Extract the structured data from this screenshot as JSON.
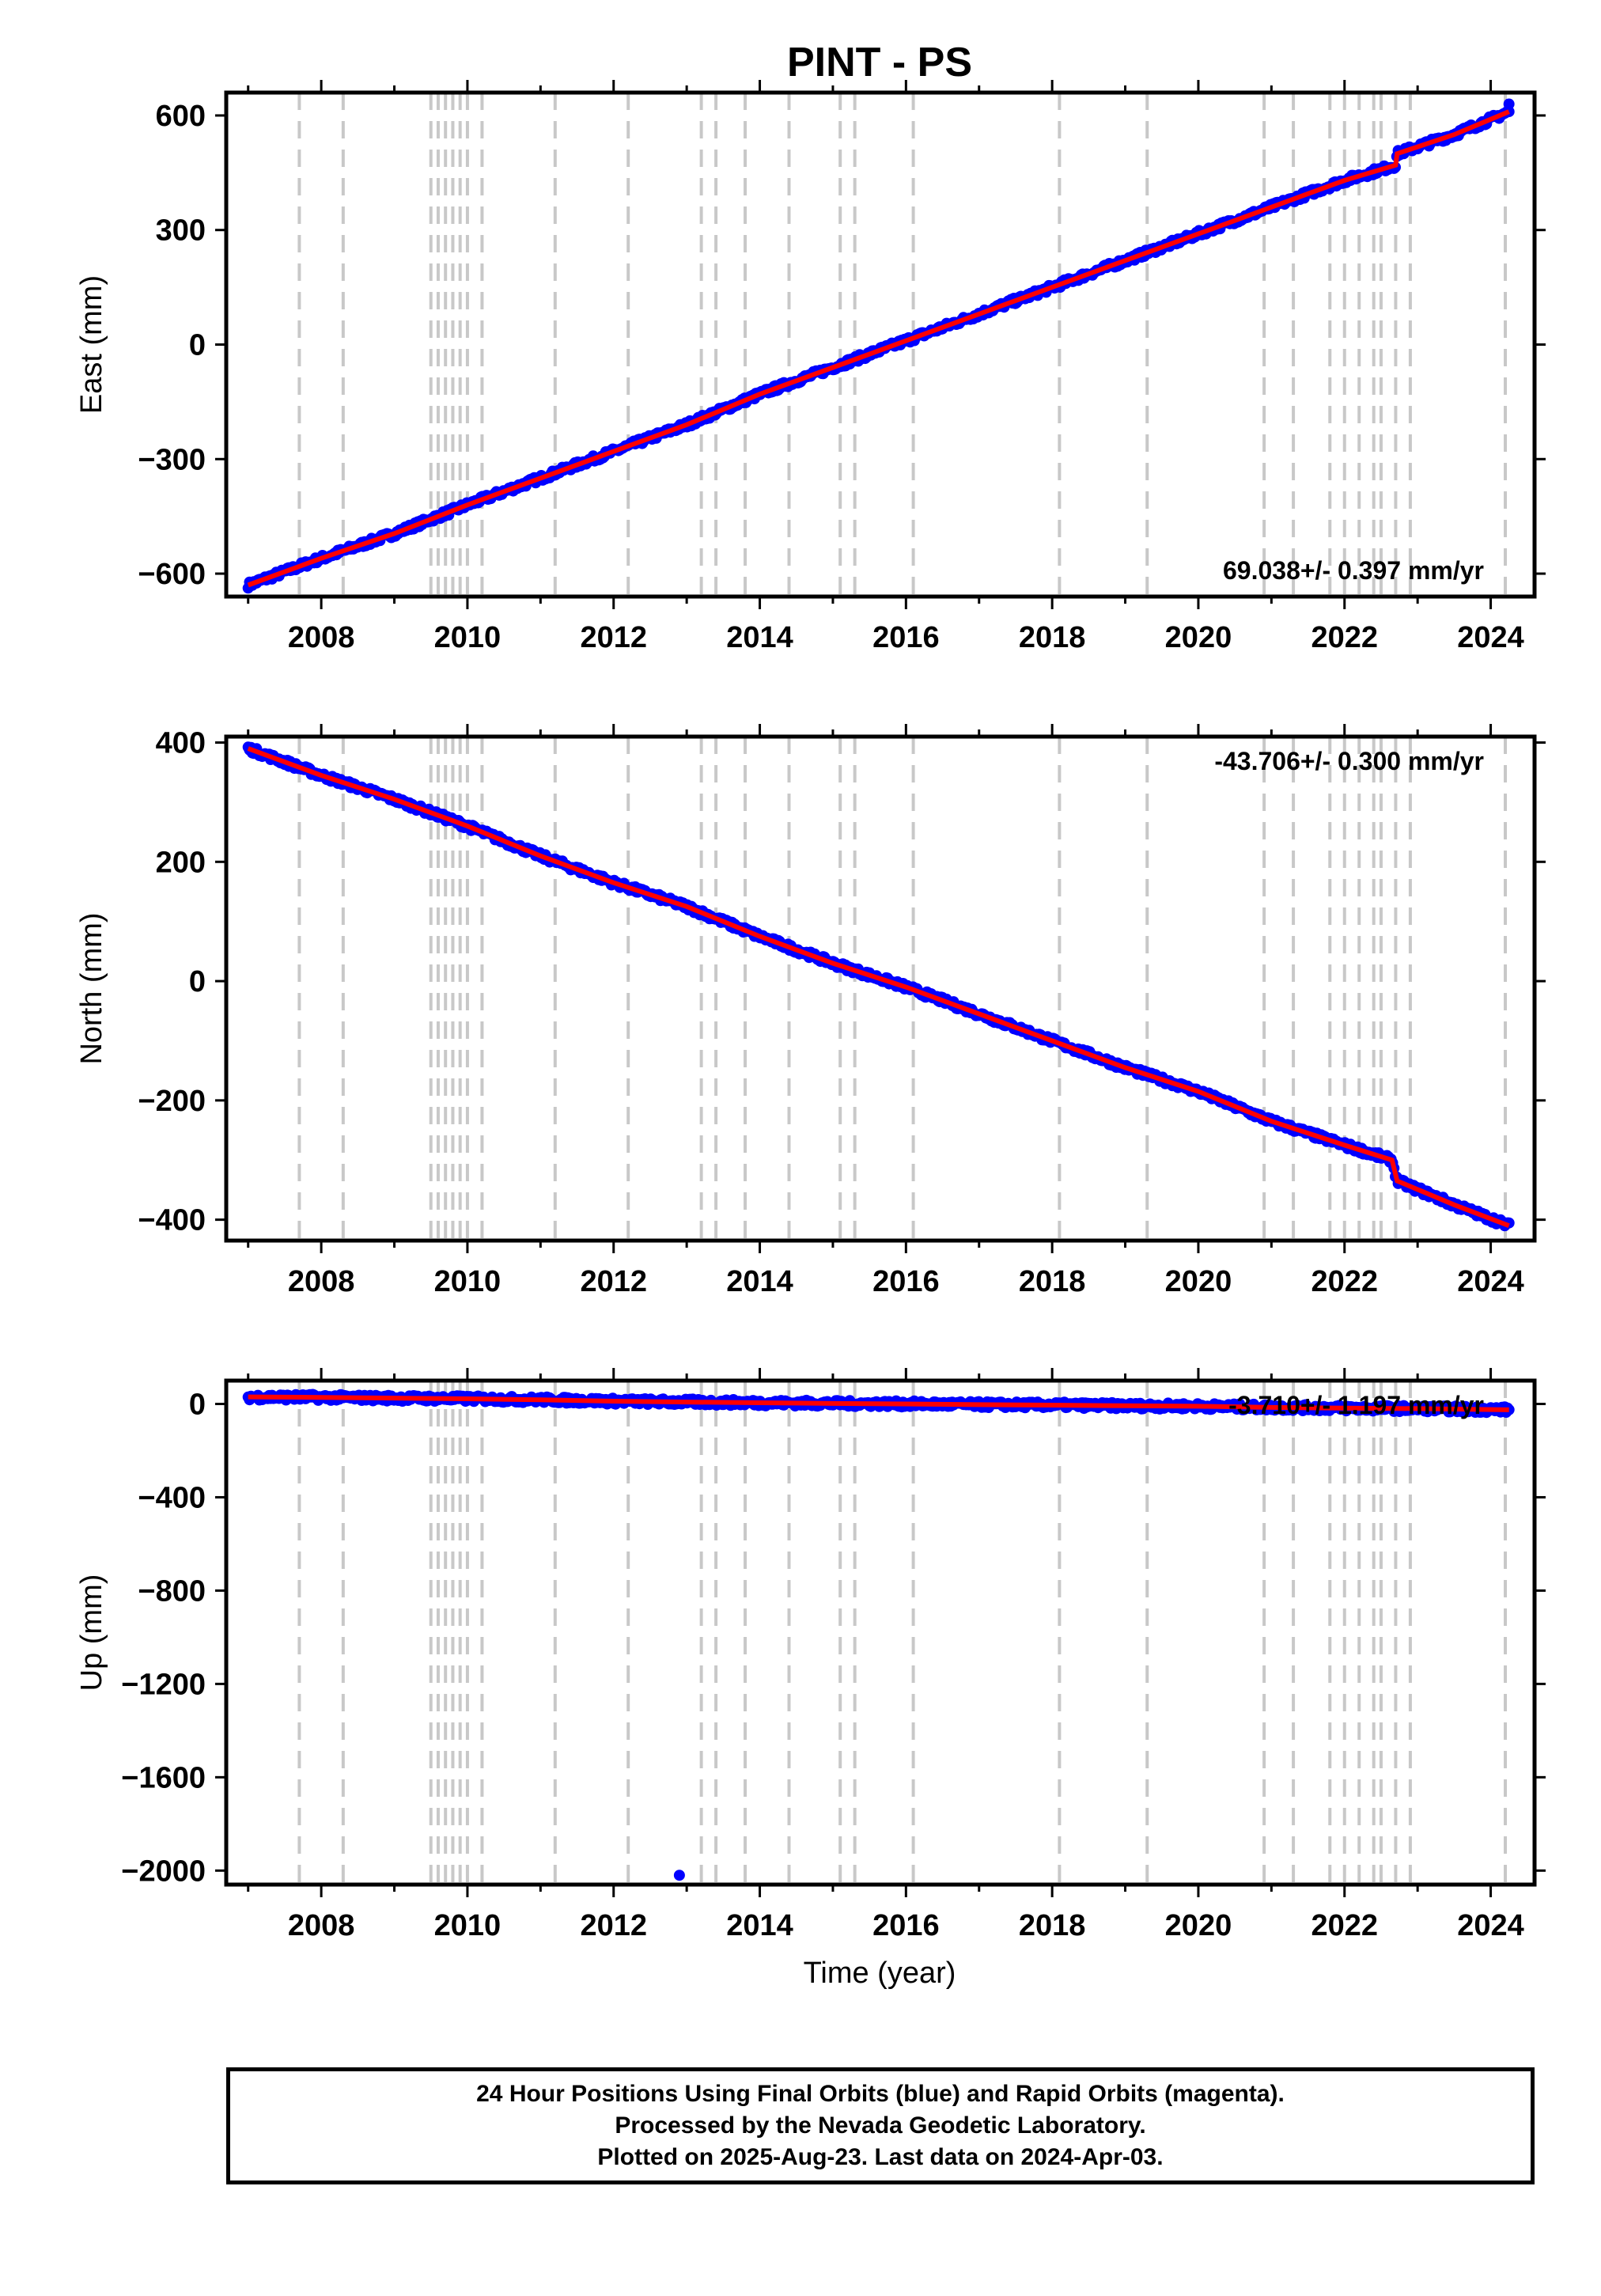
{
  "title": "PINT - PS",
  "xlabel": "Time (year)",
  "x_tick_labels": [
    "2008",
    "2010",
    "2012",
    "2014",
    "2016",
    "2018",
    "2020",
    "2022",
    "2024"
  ],
  "colors": {
    "final_orbits": "#0000ff",
    "model": "#ff0000",
    "event_lines": "#c8c8c8",
    "axes": "#000000"
  },
  "footer": {
    "line1": "24 Hour Positions Using Final Orbits (blue) and Rapid Orbits (magenta).",
    "line2": "Processed by the Nevada Geodetic Laboratory.",
    "line3": "Plotted on 2025-Aug-23. Last data on 2024-Apr-03."
  },
  "chart_data": [
    {
      "type": "scatter",
      "name": "east",
      "ylabel": "East (mm)",
      "xlim": [
        2006.7,
        2024.6
      ],
      "ylim": [
        -660,
        660
      ],
      "y_ticks": [
        600,
        300,
        0,
        -300,
        -600
      ],
      "y_tick_labels": [
        "600",
        "300",
        "0",
        "−300",
        "−600"
      ],
      "x_ticks": [
        2008,
        2010,
        2012,
        2014,
        2016,
        2018,
        2020,
        2022,
        2024
      ],
      "rate": "69.038+/- 0.397 mm/yr",
      "rate_position": "bottom-right",
      "series": [
        {
          "name": "",
          "color": "#0000ff",
          "x": [
            2007.0,
            2008.0,
            2009.0,
            2010.0,
            2011.0,
            2012.0,
            2013.0,
            2014.0,
            2015.0,
            2016.0,
            2017.0,
            2018.0,
            2019.0,
            2020.0,
            2021.0,
            2022.0,
            2022.7,
            2022.72,
            2023.5,
            2024.25
          ],
          "y": [
            -630,
            -560,
            -495,
            -420,
            -350,
            -280,
            -210,
            -130,
            -60,
            10,
            80,
            150,
            220,
            290,
            360,
            430,
            470,
            500,
            550,
            610
          ]
        },
        {
          "name": "",
          "color": "#0000ff",
          "x": [
            2024.25
          ],
          "y": [
            630
          ]
        }
      ],
      "event_years": [
        2007.7,
        2008.3,
        2009.5,
        2009.6,
        2009.7,
        2009.8,
        2009.9,
        2010.0,
        2010.2,
        2011.2,
        2012.2,
        2013.2,
        2013.4,
        2013.8,
        2014.4,
        2015.1,
        2015.3,
        2016.1,
        2018.1,
        2019.3,
        2020.9,
        2021.3,
        2021.8,
        2022.0,
        2022.2,
        2022.4,
        2022.5,
        2022.7,
        2022.9,
        2024.2
      ]
    },
    {
      "type": "scatter",
      "name": "north",
      "ylabel": "North (mm)",
      "xlim": [
        2006.7,
        2024.6
      ],
      "ylim": [
        -435,
        410
      ],
      "y_ticks": [
        400,
        200,
        0,
        -200,
        -400
      ],
      "y_tick_labels": [
        "400",
        "200",
        "0",
        "−200",
        "−400"
      ],
      "x_ticks": [
        2008,
        2010,
        2012,
        2014,
        2016,
        2018,
        2020,
        2022,
        2024
      ],
      "rate": "-43.706+/- 0.300 mm/yr",
      "rate_position": "top-right",
      "series": [
        {
          "name": "",
          "color": "#0000ff",
          "x": [
            2007.0,
            2008.0,
            2009.0,
            2010.0,
            2011.0,
            2012.0,
            2013.0,
            2014.0,
            2015.0,
            2016.0,
            2017.0,
            2018.0,
            2019.0,
            2020.0,
            2021.0,
            2022.0,
            2022.65,
            2022.72,
            2023.5,
            2024.25
          ],
          "y": [
            390,
            345,
            305,
            260,
            210,
            165,
            125,
            75,
            30,
            -10,
            -55,
            -100,
            -145,
            -185,
            -235,
            -275,
            -300,
            -335,
            -375,
            -410
          ]
        }
      ],
      "event_years": [
        2007.7,
        2008.3,
        2009.5,
        2009.6,
        2009.7,
        2009.8,
        2009.9,
        2010.0,
        2010.2,
        2011.2,
        2012.2,
        2013.2,
        2013.4,
        2013.8,
        2014.4,
        2015.1,
        2015.3,
        2016.1,
        2018.1,
        2019.3,
        2020.9,
        2021.3,
        2021.8,
        2022.0,
        2022.2,
        2022.4,
        2022.5,
        2022.7,
        2022.9,
        2024.2
      ]
    },
    {
      "type": "scatter",
      "name": "up",
      "ylabel": "Up (mm)",
      "xlim": [
        2006.7,
        2024.6
      ],
      "ylim": [
        -2060,
        100
      ],
      "y_ticks": [
        0,
        -400,
        -800,
        -1200,
        -1600,
        -2000
      ],
      "y_tick_labels": [
        "0",
        "−400",
        "−800",
        "−1200",
        "−1600",
        "−2000"
      ],
      "x_ticks": [
        2008,
        2010,
        2012,
        2014,
        2016,
        2018,
        2020,
        2022,
        2024
      ],
      "rate": "-3.710+/- 1.197 mm/yr",
      "rate_position": "top-right",
      "series": [
        {
          "name": "",
          "color": "#0000ff",
          "x": [
            2007.0,
            2008.0,
            2009.0,
            2010.0,
            2011.0,
            2012.0,
            2013.0,
            2014.0,
            2015.0,
            2016.0,
            2017.0,
            2018.0,
            2019.0,
            2020.0,
            2021.0,
            2022.0,
            2023.0,
            2024.25
          ],
          "y": [
            30,
            28,
            25,
            22,
            18,
            12,
            8,
            5,
            2,
            0,
            -3,
            -5,
            -8,
            -10,
            -15,
            -18,
            -20,
            -25
          ]
        },
        {
          "name": "",
          "color": "#0000ff",
          "x": [
            2012.9
          ],
          "y": [
            -2020
          ]
        }
      ],
      "event_years": [
        2007.7,
        2008.3,
        2009.5,
        2009.6,
        2009.7,
        2009.8,
        2009.9,
        2010.0,
        2010.2,
        2011.2,
        2012.2,
        2013.2,
        2013.4,
        2013.8,
        2014.4,
        2015.1,
        2015.3,
        2016.1,
        2018.1,
        2019.3,
        2020.9,
        2021.3,
        2021.8,
        2022.0,
        2022.2,
        2022.4,
        2022.5,
        2022.7,
        2022.9,
        2024.2
      ]
    }
  ]
}
